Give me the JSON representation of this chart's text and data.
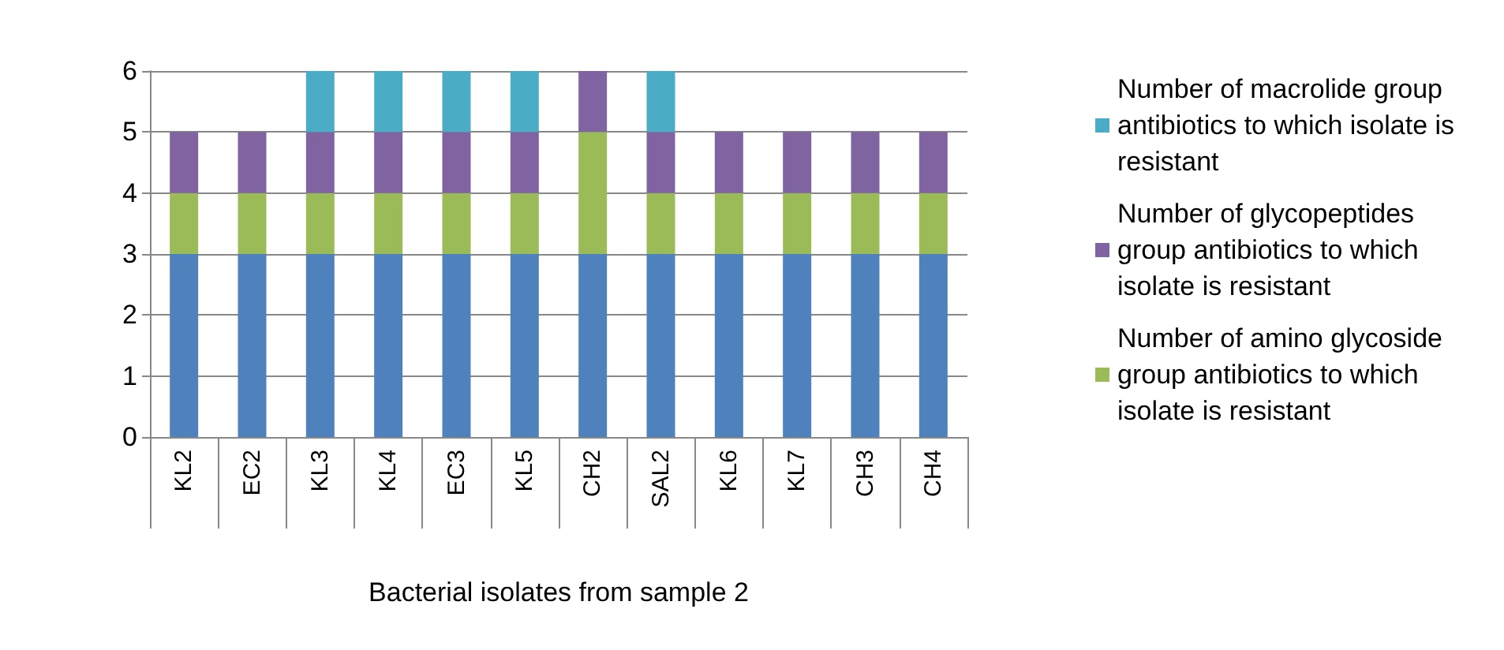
{
  "chart_data": {
    "type": "bar",
    "stacked": true,
    "xlabel": "Bacterial isolates from sample 2",
    "categories": [
      "KL2",
      "EC2",
      "KL3",
      "KL4",
      "EC3",
      "KL5",
      "CH2",
      "SAL2",
      "KL6",
      "KL7",
      "CH3",
      "CH4"
    ],
    "series": [
      {
        "color": "#4f81bd",
        "values": [
          3,
          3,
          3,
          3,
          3,
          3,
          3,
          3,
          3,
          3,
          3,
          3
        ]
      },
      {
        "name": "Number of amino glycoside group antibiotics to which isolate is resistant",
        "color": "#9bbb59",
        "values": [
          1,
          1,
          1,
          1,
          1,
          1,
          2,
          1,
          1,
          1,
          1,
          1
        ]
      },
      {
        "name": "Number of glycopeptides group antibiotics to which isolate is resistant",
        "color": "#8064a2",
        "values": [
          1,
          1,
          1,
          1,
          1,
          1,
          1,
          1,
          1,
          1,
          1,
          1
        ]
      },
      {
        "name": "Number of macrolide group  antibiotics to which isolate is resistant",
        "color": "#4bacc6",
        "values": [
          0,
          0,
          1,
          1,
          1,
          1,
          0,
          1,
          0,
          0,
          0,
          0
        ]
      }
    ],
    "ylim": [
      0,
      6
    ],
    "yticks": [
      0,
      1,
      2,
      3,
      4,
      5,
      6
    ],
    "grid": true,
    "legend": "right"
  }
}
